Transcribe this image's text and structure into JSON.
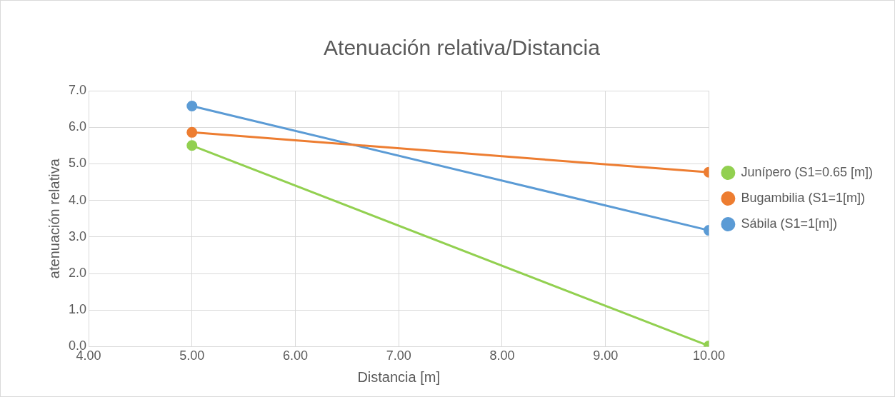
{
  "chart_data": {
    "type": "line",
    "title": "Atenuación relativa/Distancia",
    "xlabel": "Distancia [m]",
    "ylabel": "atenuación relativa",
    "x": [
      5,
      10
    ],
    "series": [
      {
        "name": "Junípero (S1=0.65 [m])",
        "color": "#92d050",
        "values": [
          5.5,
          0.02
        ]
      },
      {
        "name": "Bugambilia (S1=1[m])",
        "color": "#ed7d31",
        "values": [
          5.86,
          4.77
        ]
      },
      {
        "name": "Sábila (S1=1[m])",
        "color": "#5b9bd5",
        "values": [
          6.58,
          3.18
        ]
      }
    ],
    "xlim": [
      4,
      10
    ],
    "xticks": [
      {
        "value": 4,
        "label": "4.00"
      },
      {
        "value": 5,
        "label": "5.00"
      },
      {
        "value": 6,
        "label": "6.00"
      },
      {
        "value": 7,
        "label": "7.00"
      },
      {
        "value": 8,
        "label": "8.00"
      },
      {
        "value": 9,
        "label": "9.00"
      },
      {
        "value": 10,
        "label": "10.00"
      }
    ],
    "ylim": [
      0,
      7
    ],
    "yticks": [
      {
        "value": 0,
        "label": "0.0"
      },
      {
        "value": 1,
        "label": "1.0"
      },
      {
        "value": 2,
        "label": "2.0"
      },
      {
        "value": 3,
        "label": "3.0"
      },
      {
        "value": 4,
        "label": "4.0"
      },
      {
        "value": 5,
        "label": "5.0"
      },
      {
        "value": 6,
        "label": "6.0"
      },
      {
        "value": 7,
        "label": "7.0"
      }
    ],
    "grid": true,
    "legend": "right",
    "marker": "circle",
    "line_style": "solid"
  }
}
